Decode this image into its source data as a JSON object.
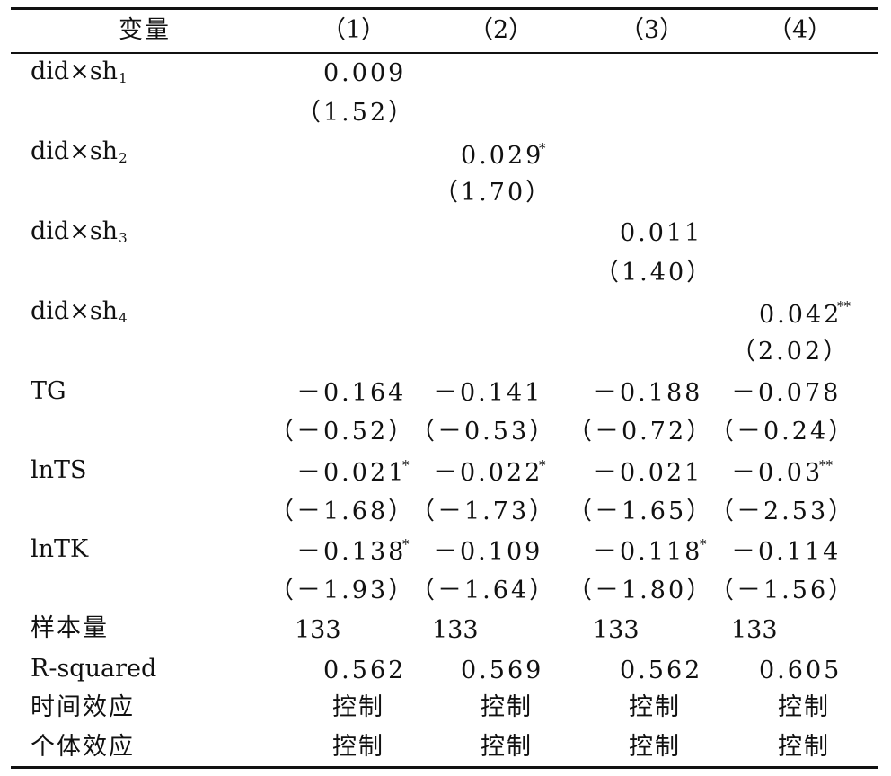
{
  "header": {
    "var": "变量",
    "c1": "（1）",
    "c2": "（2）",
    "c3": "（3）",
    "c4": "（4）"
  },
  "rows": {
    "did1": {
      "base": "did×sh",
      "sub": "1",
      "v": "0.009",
      "t": "（1.52）"
    },
    "did2": {
      "base": "did×sh",
      "sub": "2",
      "v": "0.029",
      "star": "*",
      "t": "（1.70）"
    },
    "did3": {
      "base": "did×sh",
      "sub": "3",
      "v": "0.011",
      "t": "（1.40）"
    },
    "did4": {
      "base": "did×sh",
      "sub": "4",
      "v": "0.042",
      "star": "**",
      "t": "（2.02）"
    },
    "tg": {
      "label": "TG",
      "v": [
        "－0.164",
        "－0.141",
        "－0.188",
        "－0.078"
      ],
      "t": [
        "（－0.52）",
        "（－0.53）",
        "（－0.72）",
        "（－0.24）"
      ]
    },
    "lnts": {
      "label": "lnTS",
      "v": [
        "－0.021",
        "－0.022",
        "－0.021",
        "－0.03"
      ],
      "stars": [
        "*",
        "*",
        "",
        "**"
      ],
      "t": [
        "（－1.68）",
        "（－1.73）",
        "（－1.65）",
        "（－2.53）"
      ]
    },
    "lntk": {
      "label": "lnTK",
      "v": [
        "－0.138",
        "－0.109",
        "－0.118",
        "－0.114"
      ],
      "stars": [
        "*",
        "",
        "*",
        ""
      ],
      "t": [
        "（－1.93）",
        "（－1.64）",
        "（－1.80）",
        "（－1.56）"
      ]
    },
    "n": {
      "label": "样本量",
      "v": [
        "133",
        "133",
        "133",
        "133"
      ]
    },
    "r2": {
      "label": "R-squared",
      "v": [
        "0.562",
        "0.569",
        "0.562",
        "0.605"
      ]
    },
    "time": {
      "label": "时间效应",
      "v": [
        "控制",
        "控制",
        "控制",
        "控制"
      ]
    },
    "indiv": {
      "label": "个体效应",
      "v": [
        "控制",
        "控制",
        "控制",
        "控制"
      ]
    }
  }
}
